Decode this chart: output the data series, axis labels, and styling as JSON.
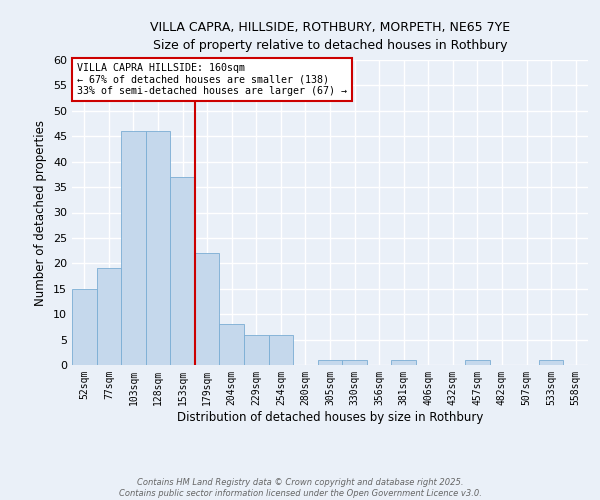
{
  "title1": "VILLA CAPRA, HILLSIDE, ROTHBURY, MORPETH, NE65 7YE",
  "title2": "Size of property relative to detached houses in Rothbury",
  "xlabel": "Distribution of detached houses by size in Rothbury",
  "ylabel": "Number of detached properties",
  "footnote": "Contains HM Land Registry data © Crown copyright and database right 2025.\nContains public sector information licensed under the Open Government Licence v3.0.",
  "categories": [
    "52sqm",
    "77sqm",
    "103sqm",
    "128sqm",
    "153sqm",
    "179sqm",
    "204sqm",
    "229sqm",
    "254sqm",
    "280sqm",
    "305sqm",
    "330sqm",
    "356sqm",
    "381sqm",
    "406sqm",
    "432sqm",
    "457sqm",
    "482sqm",
    "507sqm",
    "533sqm",
    "558sqm"
  ],
  "values": [
    15,
    19,
    46,
    46,
    37,
    22,
    8,
    6,
    6,
    0,
    1,
    1,
    0,
    1,
    0,
    0,
    1,
    0,
    0,
    1,
    0
  ],
  "bar_color": "#c5d8ec",
  "bar_edge_color": "#7aadd4",
  "background_color": "#eaf0f8",
  "grid_color": "#ffffff",
  "vline_x": 4.5,
  "vline_color": "#cc0000",
  "annotation_text": "VILLA CAPRA HILLSIDE: 160sqm\n← 67% of detached houses are smaller (138)\n33% of semi-detached houses are larger (67) →",
  "annotation_box_color": "#ffffff",
  "annotation_box_edge_color": "#cc0000",
  "ylim": [
    0,
    60
  ],
  "yticks": [
    0,
    5,
    10,
    15,
    20,
    25,
    30,
    35,
    40,
    45,
    50,
    55,
    60
  ]
}
